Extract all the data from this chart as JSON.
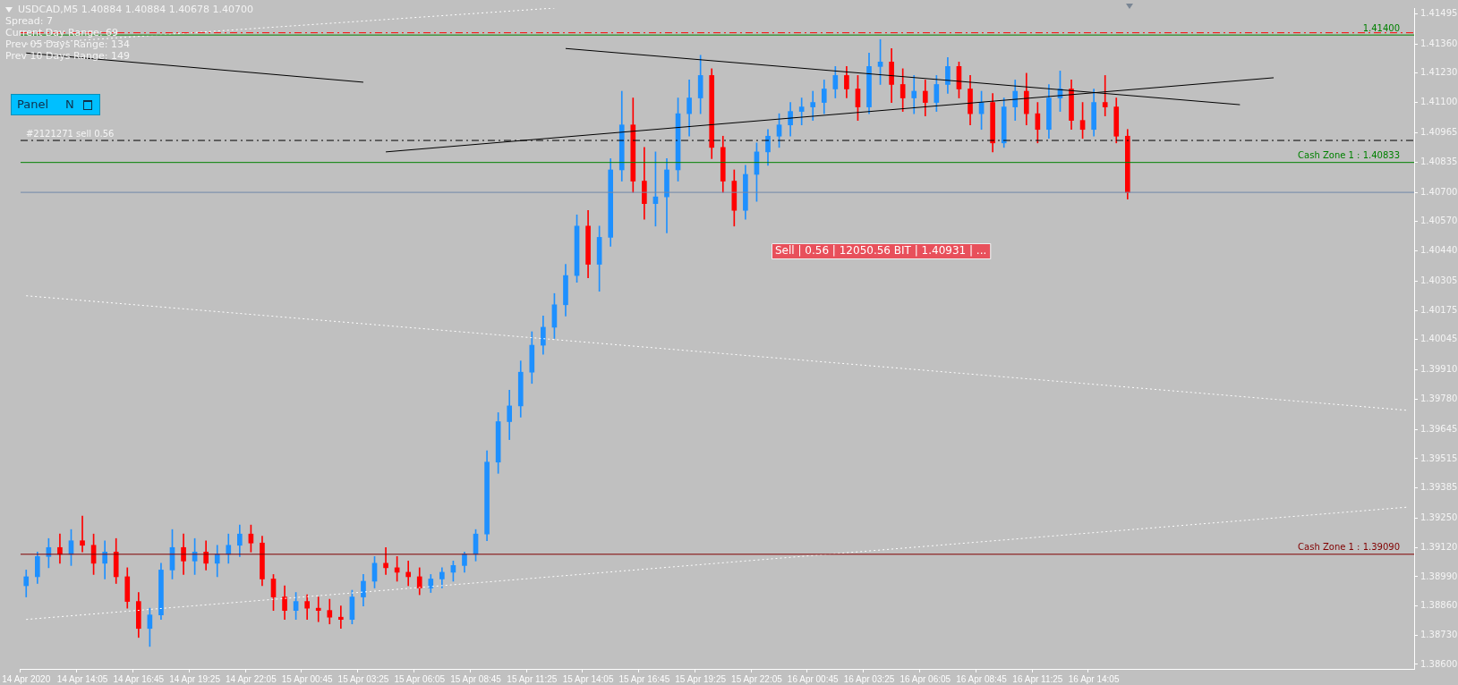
{
  "chart_data": {
    "type": "candlestick",
    "title": "USDCAD,M5  1.40884 1.40884 1.40678 1.40700",
    "categories": [
      "14 Apr 2020",
      null,
      null,
      null,
      null,
      "14 Apr 14:05",
      null,
      null,
      null,
      null,
      "14 Apr 16:45",
      null,
      null,
      null,
      null,
      "14 Apr 19:25",
      null,
      null,
      null,
      null,
      "14 Apr 22:05",
      null,
      null,
      null,
      null,
      "15 Apr 00:45",
      null,
      null,
      null,
      null,
      "15 Apr 03:25",
      null,
      null,
      null,
      null,
      "15 Apr 06:05",
      null,
      null,
      null,
      null,
      "15 Apr 08:45",
      null,
      null,
      null,
      null,
      "15 Apr 11:25",
      null,
      null,
      null,
      null,
      "15 Apr 14:05",
      null,
      null,
      null,
      null,
      "15 Apr 16:45",
      null,
      null,
      null,
      null,
      "15 Apr 19:25",
      null,
      null,
      null,
      null,
      "15 Apr 22:05",
      null,
      null,
      null,
      null,
      "16 Apr 00:45",
      null,
      null,
      null,
      null,
      "16 Apr 03:25",
      null,
      null,
      null,
      null,
      "16 Apr 06:05",
      null,
      null,
      null,
      null,
      "16 Apr 08:45",
      null,
      null,
      null,
      null,
      "16 Apr 11:25",
      null,
      null,
      null,
      null,
      "16 Apr 14:05",
      null,
      null,
      null,
      null,
      null,
      null,
      null,
      null,
      null,
      null,
      null,
      null,
      null,
      null,
      null,
      null,
      null,
      null,
      null,
      null,
      null,
      null,
      null,
      null,
      null,
      null,
      null,
      null
    ],
    "ohlc": [
      [
        1.3895,
        1.3902,
        1.389,
        1.3899
      ],
      [
        1.3899,
        1.391,
        1.3896,
        1.3908
      ],
      [
        1.3908,
        1.3916,
        1.3903,
        1.3912
      ],
      [
        1.3912,
        1.3918,
        1.3905,
        1.3909
      ],
      [
        1.3909,
        1.392,
        1.3904,
        1.3915
      ],
      [
        1.3915,
        1.3926,
        1.391,
        1.3913
      ],
      [
        1.3913,
        1.3918,
        1.39,
        1.3905
      ],
      [
        1.3905,
        1.3915,
        1.3898,
        1.391
      ],
      [
        1.391,
        1.3916,
        1.3896,
        1.3899
      ],
      [
        1.3899,
        1.3903,
        1.3885,
        1.3888
      ],
      [
        1.3888,
        1.3892,
        1.3872,
        1.3876
      ],
      [
        1.3876,
        1.3885,
        1.3868,
        1.3882
      ],
      [
        1.3882,
        1.3905,
        1.388,
        1.3902
      ],
      [
        1.3902,
        1.392,
        1.3898,
        1.3912
      ],
      [
        1.3912,
        1.3918,
        1.39,
        1.3906
      ],
      [
        1.3906,
        1.3916,
        1.39,
        1.391
      ],
      [
        1.391,
        1.3915,
        1.3902,
        1.3905
      ],
      [
        1.3905,
        1.3913,
        1.3899,
        1.3909
      ],
      [
        1.3909,
        1.3918,
        1.3905,
        1.3913
      ],
      [
        1.3913,
        1.3922,
        1.3908,
        1.3918
      ],
      [
        1.3918,
        1.3922,
        1.391,
        1.3914
      ],
      [
        1.3914,
        1.3917,
        1.3895,
        1.3898
      ],
      [
        1.3898,
        1.39,
        1.3884,
        1.389
      ],
      [
        1.389,
        1.3895,
        1.388,
        1.3884
      ],
      [
        1.3884,
        1.3892,
        1.388,
        1.3888
      ],
      [
        1.3888,
        1.3891,
        1.388,
        1.3885
      ],
      [
        1.3885,
        1.389,
        1.3879,
        1.3884
      ],
      [
        1.3884,
        1.3889,
        1.3878,
        1.3881
      ],
      [
        1.3881,
        1.3886,
        1.3876,
        1.388
      ],
      [
        1.388,
        1.3893,
        1.3878,
        1.389
      ],
      [
        1.389,
        1.39,
        1.3886,
        1.3897
      ],
      [
        1.3897,
        1.3908,
        1.3894,
        1.3905
      ],
      [
        1.3905,
        1.3912,
        1.39,
        1.3903
      ],
      [
        1.3903,
        1.3908,
        1.3897,
        1.3901
      ],
      [
        1.3901,
        1.3906,
        1.3895,
        1.3899
      ],
      [
        1.3899,
        1.3903,
        1.3891,
        1.3894
      ],
      [
        1.3894,
        1.39,
        1.3892,
        1.3898
      ],
      [
        1.3898,
        1.3903,
        1.3894,
        1.3901
      ],
      [
        1.3901,
        1.3906,
        1.3897,
        1.3904
      ],
      [
        1.3904,
        1.391,
        1.3901,
        1.3909
      ],
      [
        1.3909,
        1.392,
        1.3906,
        1.3918
      ],
      [
        1.3918,
        1.3955,
        1.3915,
        1.395
      ],
      [
        1.395,
        1.3972,
        1.3945,
        1.3968
      ],
      [
        1.3968,
        1.3982,
        1.396,
        1.3975
      ],
      [
        1.3975,
        1.3995,
        1.397,
        1.399
      ],
      [
        1.399,
        1.4008,
        1.3985,
        1.4002
      ],
      [
        1.4002,
        1.4015,
        1.3998,
        1.401
      ],
      [
        1.401,
        1.4025,
        1.4005,
        1.402
      ],
      [
        1.402,
        1.4038,
        1.4015,
        1.4033
      ],
      [
        1.4033,
        1.406,
        1.403,
        1.4055
      ],
      [
        1.4055,
        1.4062,
        1.4032,
        1.4038
      ],
      [
        1.4038,
        1.4055,
        1.4026,
        1.405
      ],
      [
        1.405,
        1.4085,
        1.4046,
        1.408
      ],
      [
        1.408,
        1.4115,
        1.4075,
        1.41
      ],
      [
        1.41,
        1.4112,
        1.407,
        1.4075
      ],
      [
        1.4075,
        1.409,
        1.4058,
        1.4065
      ],
      [
        1.4065,
        1.4088,
        1.4055,
        1.4068
      ],
      [
        1.4068,
        1.4085,
        1.4052,
        1.408
      ],
      [
        1.408,
        1.4112,
        1.4075,
        1.4105
      ],
      [
        1.4105,
        1.412,
        1.4095,
        1.4112
      ],
      [
        1.4112,
        1.4131,
        1.4105,
        1.4122
      ],
      [
        1.4122,
        1.4125,
        1.4085,
        1.409
      ],
      [
        1.409,
        1.4095,
        1.407,
        1.4075
      ],
      [
        1.4075,
        1.408,
        1.4055,
        1.4062
      ],
      [
        1.4062,
        1.4082,
        1.4058,
        1.4078
      ],
      [
        1.4078,
        1.4092,
        1.4066,
        1.4088
      ],
      [
        1.4088,
        1.4098,
        1.4082,
        1.4095
      ],
      [
        1.4095,
        1.4105,
        1.409,
        1.41
      ],
      [
        1.41,
        1.411,
        1.4095,
        1.4106
      ],
      [
        1.4106,
        1.4112,
        1.41,
        1.4108
      ],
      [
        1.4108,
        1.4115,
        1.4102,
        1.411
      ],
      [
        1.411,
        1.412,
        1.4105,
        1.4116
      ],
      [
        1.4116,
        1.4126,
        1.4112,
        1.4122
      ],
      [
        1.4122,
        1.4126,
        1.4112,
        1.4116
      ],
      [
        1.4116,
        1.4122,
        1.4102,
        1.4108
      ],
      [
        1.4108,
        1.4132,
        1.4105,
        1.4126
      ],
      [
        1.4126,
        1.4138,
        1.4118,
        1.4128
      ],
      [
        1.4128,
        1.4134,
        1.411,
        1.4118
      ],
      [
        1.4118,
        1.4125,
        1.4106,
        1.4112
      ],
      [
        1.4112,
        1.4122,
        1.4105,
        1.4115
      ],
      [
        1.4115,
        1.412,
        1.4104,
        1.411
      ],
      [
        1.411,
        1.4122,
        1.4106,
        1.4118
      ],
      [
        1.4118,
        1.413,
        1.4114,
        1.4126
      ],
      [
        1.4126,
        1.4128,
        1.4112,
        1.4116
      ],
      [
        1.4116,
        1.4122,
        1.41,
        1.4105
      ],
      [
        1.4105,
        1.4115,
        1.4098,
        1.411
      ],
      [
        1.411,
        1.4114,
        1.4088,
        1.4092
      ],
      [
        1.4092,
        1.4112,
        1.409,
        1.4108
      ],
      [
        1.4108,
        1.412,
        1.4102,
        1.4115
      ],
      [
        1.4115,
        1.4123,
        1.41,
        1.4105
      ],
      [
        1.4105,
        1.411,
        1.4092,
        1.4098
      ],
      [
        1.4098,
        1.4118,
        1.4094,
        1.4112
      ],
      [
        1.4112,
        1.4124,
        1.4106,
        1.4116
      ],
      [
        1.4116,
        1.412,
        1.4098,
        1.4102
      ],
      [
        1.4102,
        1.411,
        1.4094,
        1.4098
      ],
      [
        1.4098,
        1.4116,
        1.4095,
        1.411
      ],
      [
        1.411,
        1.4122,
        1.4104,
        1.4108
      ],
      [
        1.4108,
        1.4112,
        1.4092,
        1.4095
      ],
      [
        1.4095,
        1.4098,
        1.4067,
        1.407
      ],
      null,
      null,
      null,
      null,
      null,
      null,
      null,
      null,
      null,
      null,
      null,
      null,
      null,
      null,
      null,
      null,
      null,
      null,
      null,
      null,
      null,
      null,
      null,
      null,
      null
    ],
    "colors": [
      "#1e90ff",
      "#1e90ff",
      "#1e90ff",
      "#ff0000",
      "#1e90ff",
      "#ff0000",
      "#ff0000",
      "#1e90ff",
      "#ff0000",
      "#ff0000",
      "#ff0000",
      "#1e90ff",
      "#1e90ff",
      "#1e90ff",
      "#ff0000",
      "#1e90ff",
      "#ff0000",
      "#1e90ff",
      "#1e90ff",
      "#1e90ff",
      "#ff0000",
      "#ff0000",
      "#ff0000",
      "#ff0000",
      "#1e90ff",
      "#ff0000",
      "#ff0000",
      "#ff0000",
      "#ff0000",
      "#1e90ff",
      "#1e90ff",
      "#1e90ff",
      "#ff0000",
      "#ff0000",
      "#ff0000",
      "#ff0000",
      "#1e90ff",
      "#1e90ff",
      "#1e90ff",
      "#1e90ff",
      "#1e90ff",
      "#1e90ff",
      "#1e90ff",
      "#1e90ff",
      "#1e90ff",
      "#1e90ff",
      "#1e90ff",
      "#1e90ff",
      "#1e90ff",
      "#1e90ff",
      "#ff0000",
      "#1e90ff",
      "#1e90ff",
      "#1e90ff",
      "#ff0000",
      "#ff0000",
      "#1e90ff",
      "#1e90ff",
      "#1e90ff",
      "#1e90ff",
      "#1e90ff",
      "#ff0000",
      "#ff0000",
      "#ff0000",
      "#1e90ff",
      "#1e90ff",
      "#1e90ff",
      "#1e90ff",
      "#1e90ff",
      "#1e90ff",
      "#1e90ff",
      "#1e90ff",
      "#1e90ff",
      "#ff0000",
      "#ff0000",
      "#1e90ff",
      "#1e90ff",
      "#ff0000",
      "#ff0000",
      "#1e90ff",
      "#ff0000",
      "#1e90ff",
      "#1e90ff",
      "#ff0000",
      "#ff0000",
      "#1e90ff",
      "#ff0000",
      "#1e90ff",
      "#1e90ff",
      "#ff0000",
      "#ff0000",
      "#1e90ff",
      "#1e90ff",
      "#ff0000",
      "#ff0000",
      "#1e90ff",
      "#ff0000",
      "#ff0000",
      "#ff0000",
      null,
      null,
      null,
      null,
      null,
      null,
      null,
      null,
      null,
      null,
      null,
      null,
      null,
      null,
      null,
      null,
      null,
      null,
      null,
      null,
      null,
      null,
      null,
      null,
      null
    ],
    "series": [
      {
        "type": "line",
        "color": "#000000",
        "line_style": "solid",
        "values": [
          1.4132,
          null,
          null,
          null,
          null,
          null,
          null,
          null,
          null,
          null,
          null,
          null,
          null,
          null,
          null,
          null,
          null,
          null,
          null,
          null,
          null,
          null,
          null,
          null,
          null,
          null,
          null,
          null,
          null,
          null,
          1.4119,
          null,
          null,
          null,
          null,
          null,
          null,
          null,
          null,
          null,
          null,
          null,
          null,
          null,
          null,
          null,
          null,
          null,
          null,
          null,
          null,
          null,
          null,
          null,
          null,
          null,
          null,
          null,
          null,
          null,
          null,
          null,
          null,
          null,
          null,
          null,
          null,
          null,
          null,
          null,
          null,
          null,
          null,
          null,
          null,
          null,
          null,
          null,
          null,
          null,
          null,
          null,
          null,
          null,
          null,
          null,
          null,
          null,
          null,
          null,
          null,
          null,
          null,
          null,
          null,
          null,
          null,
          null,
          null,
          null,
          null,
          null,
          null,
          null,
          null,
          null,
          null,
          null,
          null,
          null,
          null,
          null,
          null,
          null,
          null,
          null,
          null,
          null,
          null,
          null,
          null,
          null,
          null,
          null
        ]
      },
      {
        "type": "line",
        "color": "#000000",
        "line_style": "solid",
        "values": [
          null,
          null,
          null,
          null,
          null,
          null,
          null,
          null,
          null,
          null,
          null,
          null,
          null,
          null,
          null,
          null,
          null,
          null,
          null,
          null,
          null,
          null,
          null,
          null,
          null,
          null,
          null,
          null,
          null,
          null,
          null,
          null,
          null,
          null,
          null,
          null,
          null,
          null,
          null,
          null,
          null,
          null,
          null,
          null,
          null,
          null,
          null,
          null,
          1.4134,
          null,
          null,
          null,
          null,
          null,
          null,
          null,
          null,
          null,
          null,
          null,
          null,
          null,
          null,
          null,
          null,
          null,
          null,
          null,
          null,
          null,
          null,
          null,
          null,
          null,
          null,
          null,
          null,
          null,
          null,
          null,
          null,
          null,
          null,
          null,
          null,
          null,
          null,
          null,
          null,
          null,
          null,
          null,
          null,
          null,
          null,
          null,
          null,
          null,
          null,
          null,
          null,
          null,
          null,
          null,
          null,
          null,
          null,
          null,
          1.4109,
          null,
          null,
          null,
          null,
          null,
          null,
          null,
          null,
          null,
          null,
          null,
          null,
          null,
          null,
          null
        ]
      },
      {
        "type": "line",
        "color": "#000000",
        "line_style": "solid",
        "values": [
          null,
          null,
          null,
          null,
          null,
          null,
          null,
          null,
          null,
          null,
          null,
          null,
          null,
          null,
          null,
          null,
          null,
          null,
          null,
          null,
          null,
          null,
          null,
          null,
          null,
          null,
          null,
          null,
          null,
          null,
          null,
          null,
          1.4088,
          null,
          null,
          null,
          null,
          null,
          null,
          null,
          null,
          null,
          null,
          null,
          null,
          null,
          null,
          null,
          null,
          null,
          null,
          null,
          null,
          null,
          null,
          null,
          null,
          null,
          null,
          null,
          null,
          null,
          null,
          null,
          null,
          null,
          null,
          null,
          null,
          null,
          null,
          null,
          null,
          null,
          null,
          null,
          null,
          null,
          null,
          null,
          null,
          null,
          null,
          null,
          null,
          null,
          null,
          null,
          null,
          null,
          null,
          null,
          null,
          null,
          null,
          null,
          null,
          null,
          null,
          null,
          null,
          null,
          null,
          null,
          null,
          null,
          null,
          null,
          null,
          null,
          null,
          1.4121,
          null,
          null,
          null,
          null,
          null,
          null,
          null,
          null,
          null,
          null,
          null,
          null
        ]
      },
      {
        "type": "line",
        "color": "#ffffff",
        "line_style": "dotted",
        "values": [
          1.4024,
          null,
          null,
          null,
          null,
          null,
          null,
          null,
          null,
          null,
          null,
          null,
          null,
          null,
          null,
          null,
          null,
          null,
          null,
          null,
          null,
          null,
          null,
          null,
          null,
          null,
          null,
          null,
          null,
          null,
          null,
          null,
          null,
          null,
          null,
          null,
          null,
          null,
          null,
          null,
          null,
          null,
          null,
          null,
          null,
          null,
          null,
          null,
          null,
          null,
          null,
          null,
          null,
          null,
          null,
          null,
          null,
          null,
          null,
          null,
          null,
          null,
          null,
          null,
          null,
          null,
          null,
          null,
          null,
          null,
          null,
          null,
          null,
          null,
          null,
          null,
          null,
          null,
          null,
          null,
          null,
          null,
          null,
          null,
          null,
          null,
          null,
          null,
          null,
          null,
          null,
          null,
          null,
          null,
          null,
          null,
          null,
          null,
          null,
          null,
          null,
          null,
          null,
          null,
          null,
          null,
          null,
          null,
          null,
          null,
          null,
          null,
          null,
          null,
          null,
          null,
          null,
          null,
          null,
          null,
          null,
          null,
          null,
          1.3973
        ]
      },
      {
        "type": "line",
        "color": "#ffffff",
        "line_style": "dotted",
        "values": [
          1.388,
          null,
          null,
          null,
          null,
          null,
          null,
          null,
          null,
          null,
          null,
          null,
          null,
          null,
          null,
          null,
          null,
          null,
          null,
          null,
          null,
          null,
          null,
          null,
          null,
          null,
          null,
          null,
          null,
          null,
          null,
          null,
          null,
          null,
          null,
          null,
          null,
          null,
          null,
          null,
          null,
          null,
          null,
          null,
          null,
          null,
          null,
          null,
          null,
          null,
          null,
          null,
          null,
          null,
          null,
          null,
          null,
          null,
          null,
          null,
          null,
          null,
          null,
          null,
          null,
          null,
          null,
          null,
          null,
          null,
          null,
          null,
          null,
          null,
          null,
          null,
          null,
          null,
          null,
          null,
          null,
          null,
          null,
          null,
          null,
          null,
          null,
          null,
          null,
          null,
          null,
          null,
          null,
          null,
          null,
          null,
          null,
          null,
          null,
          null,
          null,
          null,
          null,
          null,
          null,
          null,
          null,
          null,
          null,
          null,
          null,
          null,
          null,
          null,
          null,
          null,
          null,
          null,
          null,
          null,
          null,
          null,
          null,
          1.393
        ]
      },
      {
        "type": "line",
        "color": "#ffffff",
        "line_style": "dotted",
        "values": [
          1.4136,
          null,
          null,
          null,
          null,
          null,
          null,
          null,
          null,
          null,
          null,
          null,
          null,
          null,
          null,
          null,
          null,
          null,
          null,
          null,
          null,
          null,
          null,
          null,
          null,
          null,
          null,
          null,
          null,
          null,
          null,
          null,
          null,
          null,
          null,
          null,
          null,
          null,
          null,
          null,
          null,
          null,
          null,
          null,
          null,
          null,
          null,
          1.4152,
          null,
          null,
          null,
          null,
          null,
          null,
          null,
          null,
          null,
          null,
          null,
          null,
          null,
          null,
          null,
          null,
          null,
          null,
          null,
          null,
          null,
          null,
          null,
          null,
          null,
          null,
          null,
          null,
          null,
          null,
          null,
          null,
          null,
          null,
          null,
          null,
          null,
          null,
          null,
          null,
          null,
          null,
          null,
          null,
          null,
          null,
          null,
          null,
          null,
          null,
          null,
          null,
          null,
          null,
          null,
          null,
          null,
          null,
          null,
          null,
          null,
          null,
          null,
          null,
          null,
          null,
          null,
          null,
          null,
          null,
          null,
          null,
          null,
          null,
          null,
          null
        ]
      }
    ],
    "ref_lines": [
      {
        "axis": "y",
        "value": 1.414,
        "label": "1.41400",
        "color": "#008000"
      },
      {
        "axis": "y",
        "value": 1.4141,
        "color": "#ff0000",
        "line_style": "dashed"
      },
      {
        "axis": "y",
        "value": 1.40931,
        "label": "#2121271 sell 0.56",
        "color": "#000000",
        "line_style": "dashed"
      },
      {
        "axis": "y",
        "value": 1.40833,
        "label": "Cash Zone 1 : 1.40833",
        "color": "#008000"
      },
      {
        "axis": "y",
        "value": 1.407,
        "color": "#6f88a8"
      },
      {
        "axis": "y",
        "value": 1.3909,
        "label": "Cash Zone 1 : 1.39090",
        "color": "#800000"
      }
    ],
    "annotations": [
      "Spread: 7",
      "Current Day  Range: 69",
      "Prev 05 Days Range: 134",
      "Prev 10 Days Range: 149",
      "Panel",
      "N",
      "Sell | 0.56 | 12050.56 BIT | 1.40931 | ..."
    ],
    "ylim": [
      1.3858,
      1.4152
    ],
    "yticks": [
      {
        "value": 1.386,
        "label": "1.38600"
      },
      {
        "value": 1.3873,
        "label": "1.38730"
      },
      {
        "value": 1.3886,
        "label": "1.38860"
      },
      {
        "value": 1.3899,
        "label": "1.38990"
      },
      {
        "value": 1.3912,
        "label": "1.39120"
      },
      {
        "value": 1.3925,
        "label": "1.39250"
      },
      1.39385,
      1.39515,
      1.39645,
      {
        "value": 1.3978,
        "label": "1.39780"
      },
      {
        "value": 1.3991,
        "label": "1.39910"
      },
      1.40045,
      1.40175,
      1.40305,
      {
        "value": 1.4044,
        "label": "1.40440"
      },
      {
        "value": 1.4057,
        "label": "1.40570"
      },
      {
        "value": 1.407,
        "label": "1.40700"
      },
      1.40835,
      1.40965,
      {
        "value": 1.411,
        "label": "1.41100"
      },
      {
        "value": 1.4123,
        "label": "1.41230"
      },
      {
        "value": 1.4136,
        "label": "1.41360"
      },
      1.41495
    ],
    "grid": false,
    "legend": false
  }
}
